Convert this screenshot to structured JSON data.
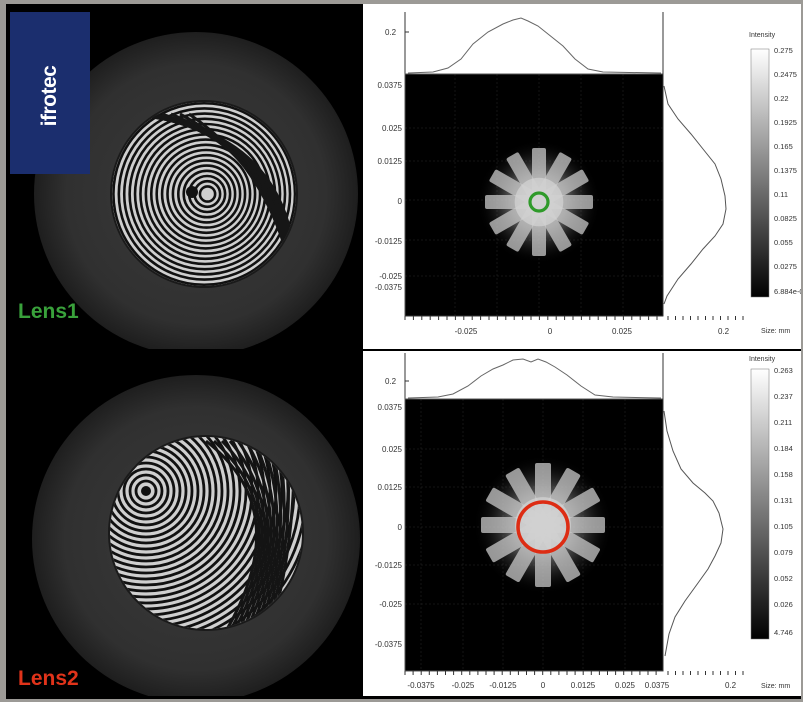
{
  "brand": {
    "name": "ifrotec",
    "color": "#1b2e6e"
  },
  "lens1": {
    "label": "Lens1",
    "label_color": "#39a13b",
    "marker_color": "#2f9a2a",
    "intensity_title": "Intensity",
    "intensity_ticks": [
      "0.275",
      "0.2475",
      "0.22",
      "0.1925",
      "0.165",
      "0.1375",
      "0.11",
      "0.0825",
      "0.055",
      "0.0275",
      "6.884e-0"
    ],
    "y_profile_label": "0.2",
    "y_ticks": [
      "0.0375",
      "0.025",
      "0.0125",
      "0",
      "-0.0125",
      "-0.025",
      "-0.0375"
    ],
    "x_ticks": [
      "-0.025",
      "0",
      "0.025"
    ],
    "x_profile_label": "0.2",
    "size_label": "Size: mm"
  },
  "lens2": {
    "label": "Lens2",
    "label_color": "#e0331a",
    "marker_color": "#dd2c13",
    "intensity_title": "Intensity",
    "intensity_ticks": [
      "0.263",
      "0.237",
      "0.211",
      "0.184",
      "0.158",
      "0.131",
      "0.105",
      "0.079",
      "0.052",
      "0.026",
      "4.746"
    ],
    "y_profile_label": "0.2",
    "y_ticks": [
      "0.0375",
      "0.025",
      "0.0125",
      "0",
      "-0.0125",
      "-0.025",
      "-0.0375"
    ],
    "x_ticks": [
      "-0.0375",
      "-0.025",
      "-0.0125",
      "0",
      "0.0125",
      "0.025",
      "0.0375"
    ],
    "x_profile_label": "0.2",
    "size_label": "Size: mm"
  }
}
